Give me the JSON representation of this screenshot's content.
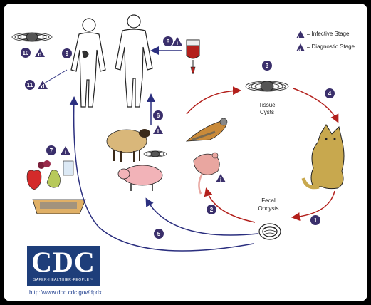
{
  "legend": {
    "infective_letter": "i",
    "infective_label": "= Infective Stage",
    "diagnostic_letter": "d",
    "diagnostic_label": "= Diagnostic Stage"
  },
  "labels": {
    "tissue_cysts": [
      "Tissue",
      "Cysts"
    ],
    "fecal_oocysts": [
      "Fecal",
      "Oocysts"
    ]
  },
  "steps": {
    "s1": "1",
    "s2": "2",
    "s3": "3",
    "s4": "4",
    "s5": "5",
    "s6": "6",
    "s7": "7",
    "s8": "8",
    "s9": "9",
    "s10": "10",
    "s11": "11"
  },
  "badges": {
    "i": "i",
    "d": "d"
  },
  "logo": {
    "letters": "CDC",
    "tagline": "SAFER·HEALTHIER·PEOPLE™",
    "url": "http://www.dpd.cdc.gov/dpdx"
  },
  "colors": {
    "badge": "#3a2f6b",
    "red_arrow": "#b3201c",
    "blue_arrow": "#2b2f7f"
  }
}
